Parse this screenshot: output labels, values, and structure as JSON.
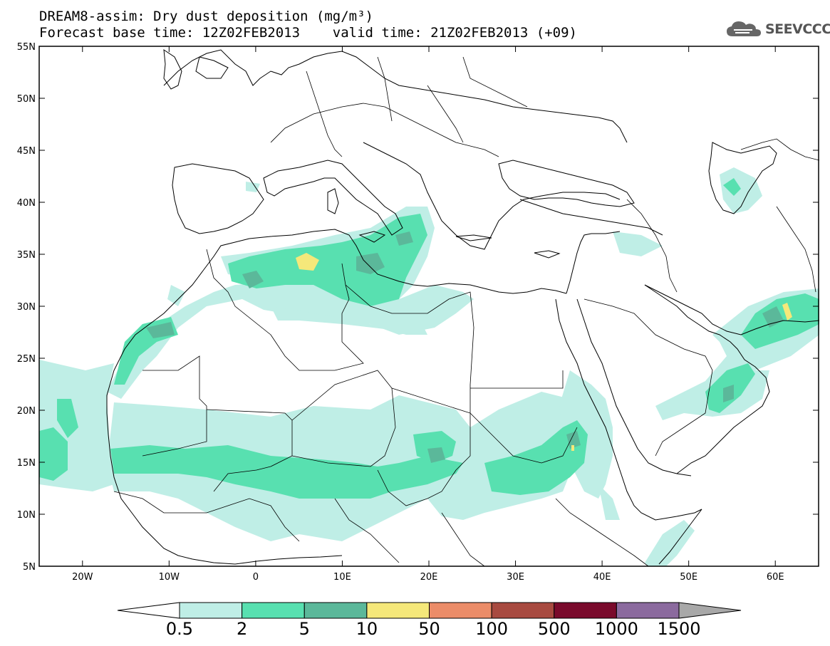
{
  "title": {
    "line1": "DREAM8-assim: Dry dust deposition (mg/m³)",
    "line2": "Forecast base time: 12Z02FEB2013    valid time: 21Z02FEB2013 (+09)"
  },
  "logo": {
    "text": "SEEVCCC",
    "icon": "cloud-icon"
  },
  "map": {
    "lon_range": [
      -25,
      65
    ],
    "lat_range": [
      5,
      55
    ],
    "lat_ticks": [
      "55N",
      "50N",
      "45N",
      "40N",
      "35N",
      "30N",
      "25N",
      "20N",
      "15N",
      "10N",
      "5N"
    ],
    "lon_ticks": [
      "20W",
      "10W",
      "0",
      "10E",
      "20E",
      "30E",
      "40E",
      "50E",
      "60E"
    ],
    "colors": {
      "land_lines": "#000000",
      "background": "#ffffff"
    }
  },
  "colorbar": {
    "levels": [
      "0.5",
      "2",
      "5",
      "10",
      "50",
      "100",
      "500",
      "1000",
      "1500"
    ],
    "colors": [
      "#ffffff",
      "#bfeee6",
      "#58e0b0",
      "#5bb89a",
      "#f5e87a",
      "#eb8c68",
      "#a84a40",
      "#7a0a2c",
      "#8b6a9e",
      "#a8a8a8"
    ]
  }
}
